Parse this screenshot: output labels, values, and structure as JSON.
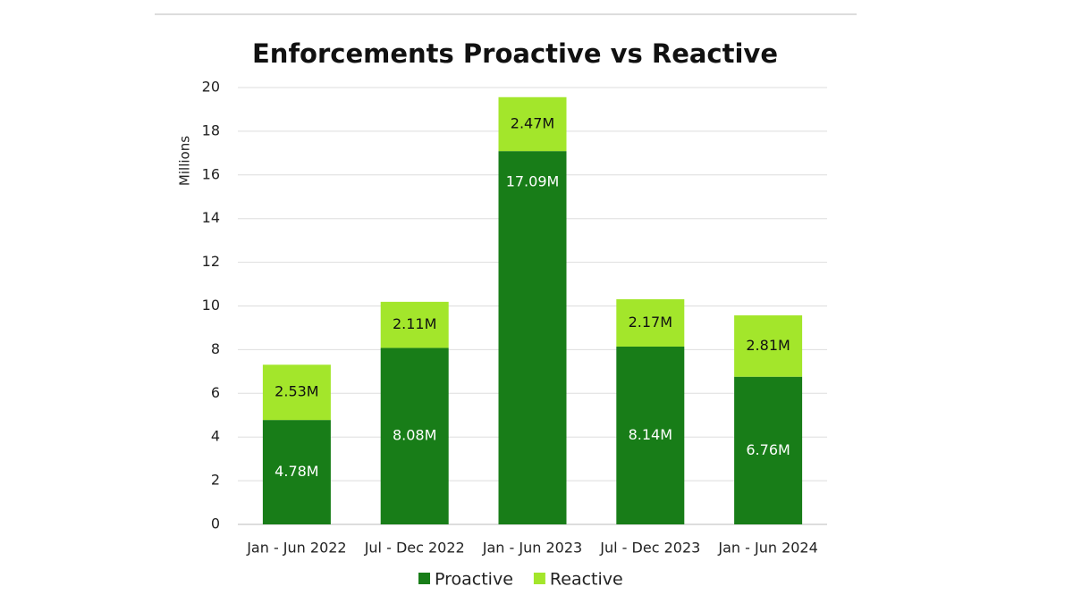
{
  "chart_data": {
    "type": "bar",
    "stacked": true,
    "title": "Enforcements Proactive vs Reactive",
    "y_axis_label": "Millions",
    "categories": [
      "Jan - Jun 2022",
      "Jul - Dec 2022",
      "Jan - Jun 2023",
      "Jul - Dec 2023",
      "Jan - Jun 2024"
    ],
    "series": [
      {
        "name": "Proactive",
        "color": "#187d18",
        "values": [
          4.78,
          8.08,
          17.09,
          8.14,
          6.76
        ],
        "value_labels": [
          "4.78M",
          "8.08M",
          "17.09M",
          "8.14M",
          "6.76M"
        ]
      },
      {
        "name": "Reactive",
        "color": "#a3e62b",
        "values": [
          2.53,
          2.11,
          2.47,
          2.17,
          2.81
        ],
        "value_labels": [
          "2.53M",
          "2.11M",
          "2.47M",
          "2.17M",
          "2.81M"
        ]
      }
    ],
    "ylim": [
      0,
      20
    ],
    "yticks": [
      0,
      2,
      4,
      6,
      8,
      10,
      12,
      14,
      16,
      18,
      20
    ],
    "grid": true,
    "legend": "bottom"
  }
}
